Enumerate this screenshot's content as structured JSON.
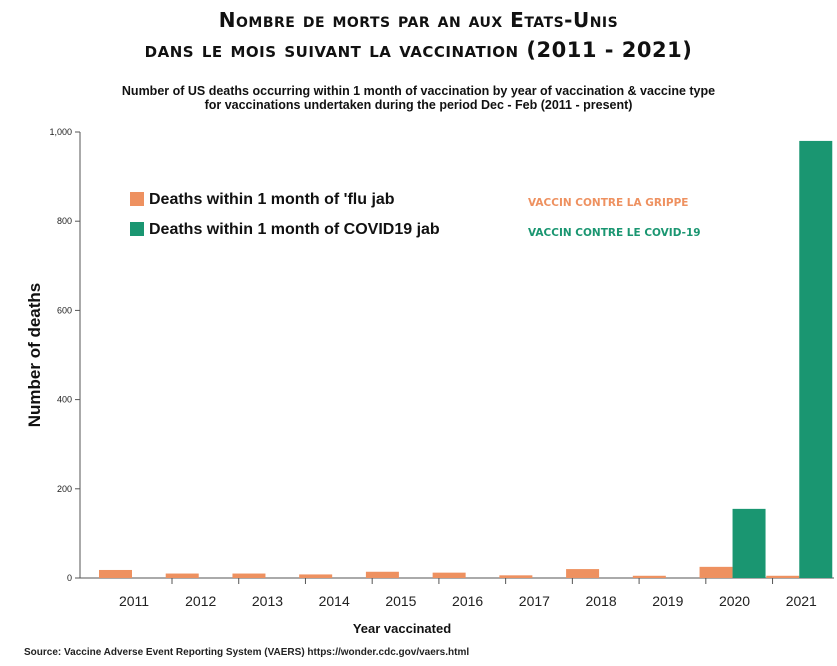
{
  "titles": {
    "line1": "Nombre de morts par an aux Etats-Unis",
    "line2": "dans le mois suivant la vaccination (2011 - 2021)",
    "sub1": "Number of US deaths occurring within 1 month of vaccination by year of vaccination & vaccine type",
    "sub2": "for vaccinations undertaken during the period Dec - Feb (2011 - present)"
  },
  "source": "Source: Vaccine Adverse Event Reporting System (VAERS) https://wonder.cdc.gov/vaers.html",
  "colors": {
    "flu": "#EE9160",
    "covid": "#1A9671"
  },
  "annotations": {
    "flu": "VACCIN CONTRE LA GRIPPE",
    "covid": "VACCIN CONTRE LE COVID-19"
  },
  "chart_data": {
    "type": "bar",
    "categories": [
      "2011",
      "2012",
      "2013",
      "2014",
      "2015",
      "2016",
      "2017",
      "2018",
      "2019",
      "2020",
      "2021"
    ],
    "series": [
      {
        "name": "Deaths within 1 month of 'flu jab",
        "values": [
          18,
          10,
          10,
          8,
          14,
          12,
          6,
          20,
          5,
          25,
          5
        ]
      },
      {
        "name": "Deaths within 1 month of COVID19 jab",
        "values": [
          0,
          0,
          0,
          0,
          0,
          0,
          0,
          0,
          0,
          155,
          980
        ]
      }
    ],
    "xlabel": "Year vaccinated",
    "ylabel": "Number of deaths",
    "ylim": [
      0,
      1000
    ],
    "yticks": [
      0,
      200,
      400,
      600,
      800,
      1000
    ],
    "ytick_labels": [
      "0",
      "200",
      "400",
      "600",
      "800",
      "1,000"
    ],
    "grid": false,
    "legend": "top-left"
  }
}
